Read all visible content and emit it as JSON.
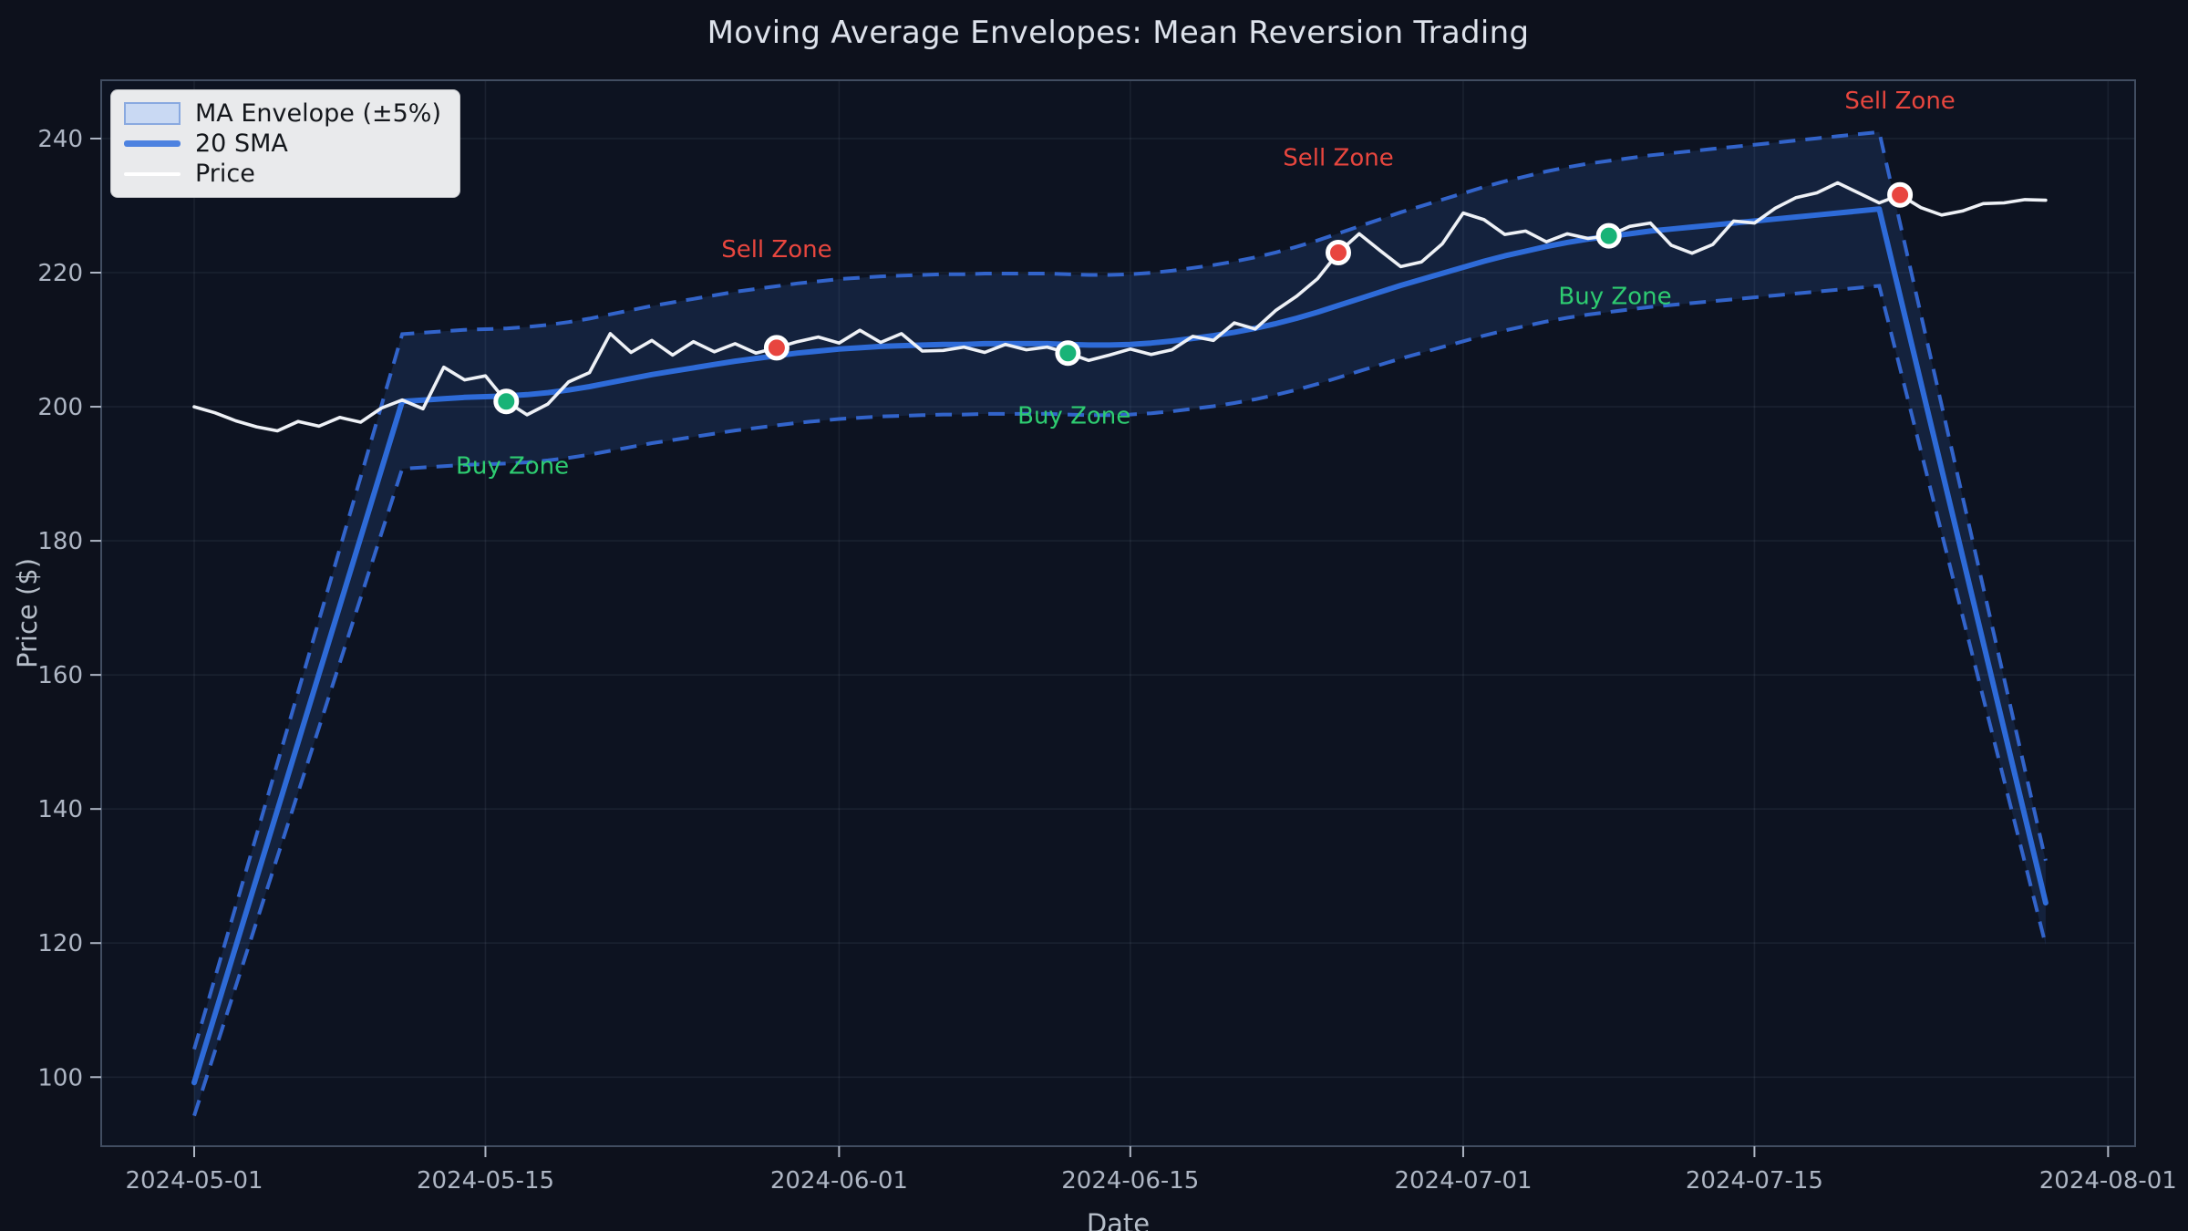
{
  "colors": {
    "figure_bg": "#0d111c",
    "plot_bg": "#0d1321",
    "grid": "rgba(164,180,204,0.09)",
    "spine": "#414d61",
    "tick_label": "#aeb6c4",
    "axis_title": "#b6bec9",
    "title": "#dde2eb",
    "sma": "#2e6bd8",
    "envelope_line": "#3264cb",
    "envelope_fill": "rgba(62,112,204,0.17)",
    "price": "#eef1f6",
    "buy": "#18b377",
    "sell": "#e8453f",
    "buy_text": "#2ecc71",
    "sell_text": "#e8463e"
  },
  "legend": {
    "items": [
      {
        "label": "MA Envelope (±5%)",
        "swatch": "patch"
      },
      {
        "label": "20 SMA",
        "swatch": "line-blue"
      },
      {
        "label": "Price",
        "swatch": "line-white"
      }
    ]
  },
  "chart_data": {
    "type": "line",
    "title": "Moving Average Envelopes: Mean Reversion Trading",
    "xlabel": "Date",
    "ylabel": "Price ($)",
    "grid": true,
    "legend_position": "upper left",
    "start_date": "2024-05-01",
    "xlim_days": [
      -4.47,
      93.3
    ],
    "ylim": [
      89.7,
      248.7
    ],
    "envelope_pct": 5,
    "x_ticks": [
      {
        "label": "2024-05-01",
        "day": 0
      },
      {
        "label": "2024-05-15",
        "day": 14
      },
      {
        "label": "2024-06-01",
        "day": 31
      },
      {
        "label": "2024-06-15",
        "day": 45
      },
      {
        "label": "2024-07-01",
        "day": 61
      },
      {
        "label": "2024-07-15",
        "day": 75
      },
      {
        "label": "2024-08-01",
        "day": 92
      }
    ],
    "y_ticks": [
      100,
      120,
      140,
      160,
      180,
      200,
      220,
      240
    ],
    "series": {
      "price": {
        "name": "Price",
        "values": [
          200.0,
          199.1,
          197.9,
          197.0,
          196.4,
          197.8,
          197.1,
          198.4,
          197.7,
          199.8,
          201.0,
          199.7,
          205.9,
          204.0,
          204.6,
          200.8,
          198.8,
          200.4,
          203.7,
          205.1,
          210.9,
          208.1,
          209.9,
          207.7,
          209.7,
          208.2,
          209.4,
          208.0,
          208.8,
          209.7,
          210.4,
          209.5,
          211.4,
          209.6,
          210.9,
          208.3,
          208.4,
          208.9,
          208.1,
          209.3,
          208.5,
          208.9,
          208.0,
          206.9,
          207.7,
          208.6,
          207.8,
          208.5,
          210.5,
          209.9,
          212.5,
          211.6,
          214.4,
          216.5,
          219.1,
          223.0,
          225.8,
          223.3,
          220.9,
          221.6,
          224.3,
          228.9,
          227.9,
          225.7,
          226.2,
          224.6,
          225.8,
          225.1,
          225.5,
          226.9,
          227.4,
          224.1,
          222.9,
          224.2,
          227.7,
          227.4,
          229.6,
          231.2,
          231.9,
          233.4,
          231.9,
          230.4,
          231.6,
          229.7,
          228.6,
          229.2,
          230.3,
          230.4,
          230.9,
          230.8
        ]
      },
      "sma": {
        "name": "20 SMA",
        "x_days": [
          0,
          10,
          11,
          12,
          13,
          14,
          15,
          16,
          17,
          18,
          19,
          20,
          21,
          22,
          23,
          24,
          25,
          26,
          27,
          28,
          29,
          30,
          31,
          32,
          33,
          34,
          35,
          36,
          37,
          38,
          39,
          40,
          41,
          42,
          43,
          44,
          45,
          46,
          47,
          48,
          49,
          50,
          51,
          52,
          53,
          54,
          55,
          56,
          57,
          58,
          59,
          60,
          61,
          62,
          63,
          64,
          65,
          66,
          67,
          68,
          69,
          70,
          71,
          72,
          73,
          74,
          75,
          76,
          77,
          78,
          79,
          80,
          81,
          89
        ],
        "values": [
          99.2,
          200.8,
          201.0,
          201.2,
          201.4,
          201.5,
          201.6,
          201.8,
          202.1,
          202.5,
          203.0,
          203.6,
          204.2,
          204.8,
          205.3,
          205.8,
          206.3,
          206.8,
          207.2,
          207.6,
          208.0,
          208.3,
          208.6,
          208.8,
          209.0,
          209.1,
          209.2,
          209.3,
          209.3,
          209.4,
          209.4,
          209.4,
          209.4,
          209.3,
          209.2,
          209.2,
          209.3,
          209.5,
          209.8,
          210.2,
          210.6,
          211.1,
          211.7,
          212.4,
          213.2,
          214.1,
          215.1,
          216.1,
          217.1,
          218.1,
          219.0,
          219.9,
          220.8,
          221.7,
          222.5,
          223.2,
          223.9,
          224.5,
          225.0,
          225.4,
          225.8,
          226.2,
          226.5,
          226.8,
          227.1,
          227.4,
          227.7,
          228.0,
          228.3,
          228.6,
          228.9,
          229.2,
          229.5,
          126.0
        ]
      }
    },
    "markers": [
      {
        "day": 15,
        "value": 200.8,
        "type": "buy"
      },
      {
        "day": 28,
        "value": 208.8,
        "type": "sell"
      },
      {
        "day": 42,
        "value": 208.0,
        "type": "buy"
      },
      {
        "day": 55,
        "value": 223.0,
        "type": "sell"
      },
      {
        "day": 68,
        "value": 225.5,
        "type": "buy"
      },
      {
        "day": 82,
        "value": 231.6,
        "type": "sell"
      }
    ],
    "annotations": [
      {
        "text": "Buy Zone",
        "day": 15.3,
        "value": 190.0,
        "type": "buy"
      },
      {
        "text": "Sell Zone",
        "day": 28.0,
        "value": 222.3,
        "type": "sell"
      },
      {
        "text": "Buy Zone",
        "day": 42.3,
        "value": 197.5,
        "type": "buy"
      },
      {
        "text": "Sell Zone",
        "day": 55.0,
        "value": 236.0,
        "type": "sell"
      },
      {
        "text": "Buy Zone",
        "day": 68.3,
        "value": 215.3,
        "type": "buy"
      },
      {
        "text": "Sell Zone",
        "day": 82.0,
        "value": 244.5,
        "type": "sell"
      }
    ]
  }
}
